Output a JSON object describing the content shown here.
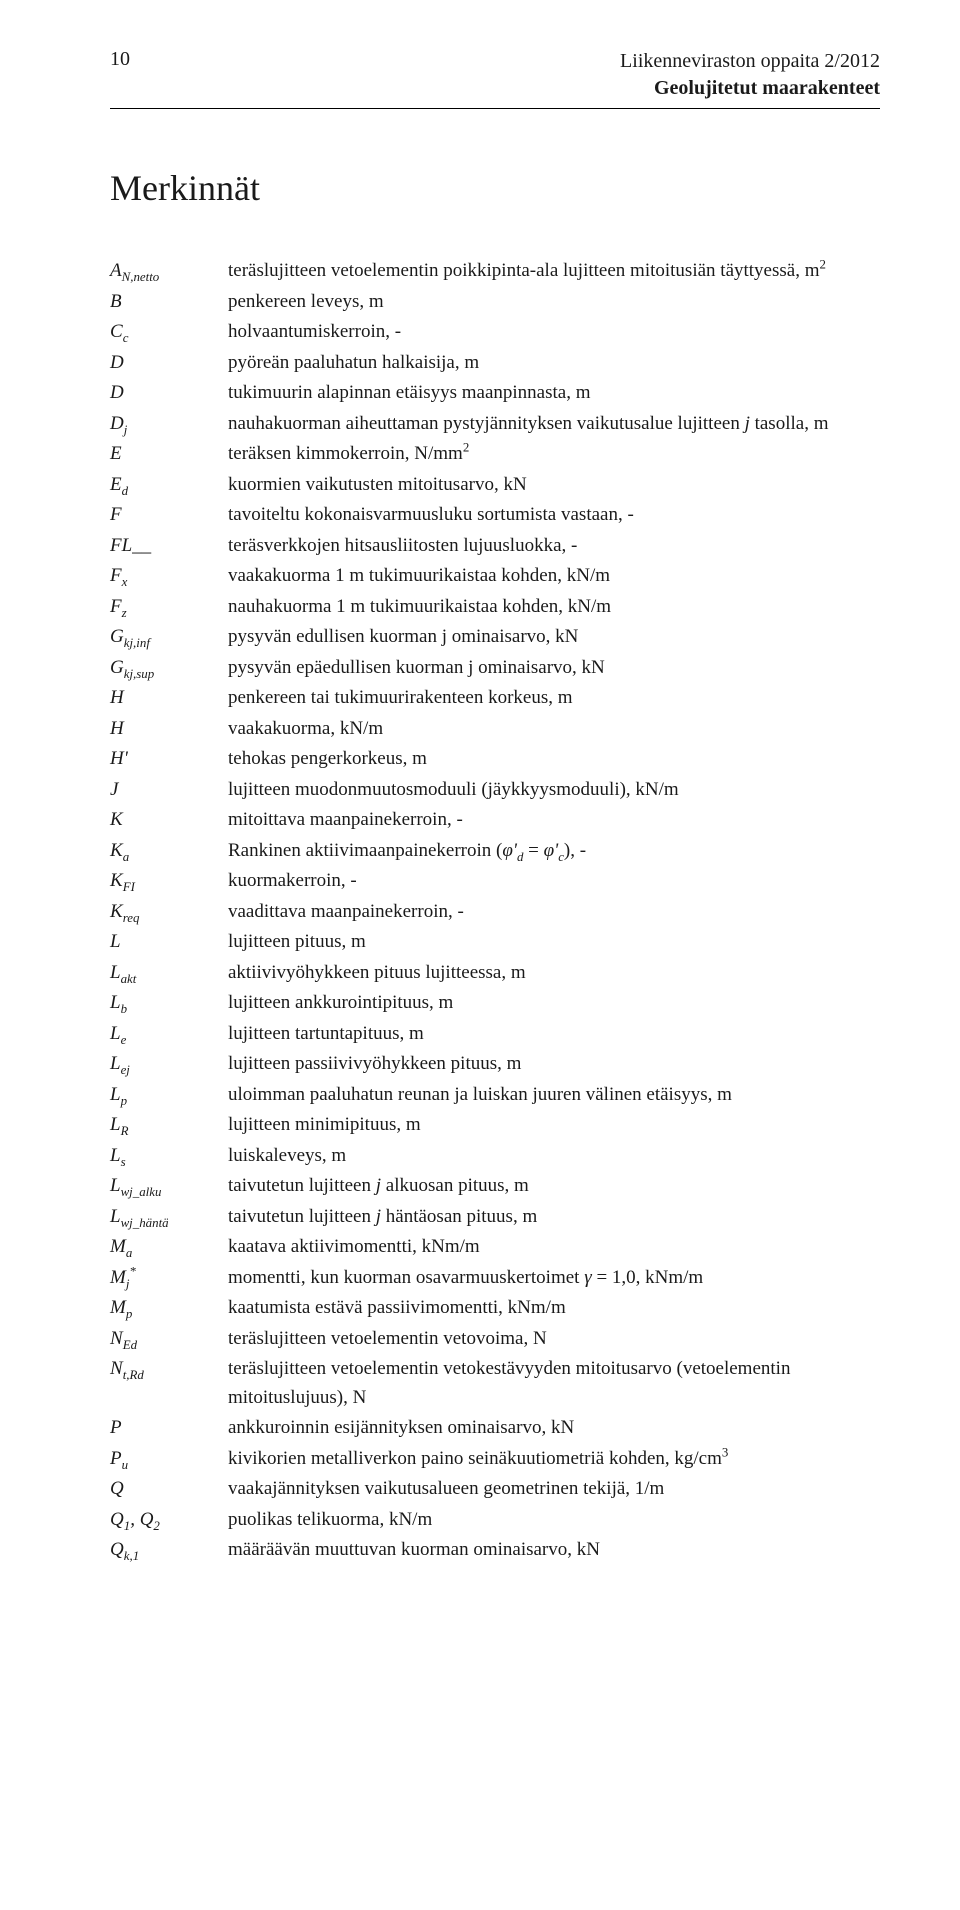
{
  "header": {
    "page_number": "10",
    "line1": "Liikenneviraston oppaita 2/2012",
    "line2": "Geolujitetut maarakenteet"
  },
  "section_title": "Merkinnät",
  "definitions": [
    {
      "symbol_html": "A<span class='sub'>N,netto</span>",
      "desc_html": "teräslujitteen vetoelementin poikkipinta-ala lujitteen mitoitusiän täyttyessä, m<span class='sup'>2</span>"
    },
    {
      "symbol_html": "B",
      "desc_html": "penkereen leveys, m"
    },
    {
      "symbol_html": "C<span class='sub'>c</span>",
      "desc_html": "holvaantumiskerroin, -"
    },
    {
      "symbol_html": "D",
      "desc_html": "pyöreän paaluhatun halkaisija, m"
    },
    {
      "symbol_html": "D",
      "desc_html": "tukimuurin alapinnan etäisyys maanpinnasta, m"
    },
    {
      "symbol_html": "D<span class='sub'>j</span>",
      "desc_html": "nauhakuorman aiheuttaman pystyjännityksen vaikutusalue lujitteen <span class='it'>j</span> tasolla, m"
    },
    {
      "symbol_html": "E",
      "desc_html": "teräksen kimmokerroin, N/mm<span class='sup'>2</span>"
    },
    {
      "symbol_html": "E<span class='sub'>d</span>",
      "desc_html": "kuormien vaikutusten mitoitusarvo, kN"
    },
    {
      "symbol_html": "F",
      "desc_html": "tavoiteltu kokonaisvarmuusluku sortumista vastaan, -"
    },
    {
      "symbol_html": "FL__",
      "desc_html": "teräsverkkojen hitsausliitosten lujuusluokka, -"
    },
    {
      "symbol_html": "F<span class='sub'>x</span>",
      "desc_html": "vaakakuorma 1 m tukimuurikaistaa kohden, kN/m"
    },
    {
      "symbol_html": "F<span class='sub'>z</span>",
      "desc_html": "nauhakuorma 1 m tukimuurikaistaa kohden, kN/m"
    },
    {
      "symbol_html": "G<span class='sub'>kj,inf</span>",
      "desc_html": "pysyvän edullisen kuorman j ominaisarvo, kN"
    },
    {
      "symbol_html": "G<span class='sub'>kj,sup</span>",
      "desc_html": "pysyvän epäedullisen kuorman j ominaisarvo, kN"
    },
    {
      "symbol_html": "H",
      "desc_html": "penkereen tai tukimuurirakenteen korkeus, m"
    },
    {
      "symbol_html": "H",
      "desc_html": "vaakakuorma, kN/m"
    },
    {
      "symbol_html": "H'",
      "desc_html": "tehokas pengerkorkeus, m"
    },
    {
      "symbol_html": "J",
      "desc_html": "lujitteen muodonmuutosmoduuli (jäykkyysmoduuli), kN/m"
    },
    {
      "symbol_html": "K",
      "desc_html": "mitoittava maanpainekerroin, -"
    },
    {
      "symbol_html": "K<span class='sub'>a</span>",
      "desc_html": "Rankinen aktiivimaanpainekerroin (<span class='it'>φ'<span class='sub'>d</span></span> = <span class='it'>φ'<span class='sub'>c</span></span>), -"
    },
    {
      "symbol_html": "K<span class='sub'>FI</span>",
      "desc_html": "kuormakerroin, -"
    },
    {
      "symbol_html": "K<span class='sub'>req</span>",
      "desc_html": "vaadittava maanpainekerroin, -"
    },
    {
      "symbol_html": "L",
      "desc_html": "lujitteen pituus, m"
    },
    {
      "symbol_html": "L<span class='sub'>akt</span>",
      "desc_html": "aktiivivyöhykkeen pituus lujitteessa, m"
    },
    {
      "symbol_html": "L<span class='sub'>b</span>",
      "desc_html": "lujitteen ankkurointipituus, m"
    },
    {
      "symbol_html": "L<span class='sub'>e</span>",
      "desc_html": "lujitteen tartuntapituus, m"
    },
    {
      "symbol_html": "L<span class='sub'>ej</span>",
      "desc_html": "lujitteen passiivivyöhykkeen pituus, m"
    },
    {
      "symbol_html": "L<span class='sub'>p</span>",
      "desc_html": "uloimman paaluhatun reunan ja luiskan juuren välinen etäisyys, m"
    },
    {
      "symbol_html": "L<span class='sub'>R</span>",
      "desc_html": "lujitteen minimipituus, m"
    },
    {
      "symbol_html": "L<span class='sub'>s</span>",
      "desc_html": "luiskaleveys, m"
    },
    {
      "symbol_html": "L<span class='sub'>wj_alku</span>",
      "desc_html": "taivutetun lujitteen <span class='it'>j</span> alkuosan pituus, m"
    },
    {
      "symbol_html": "L<span class='sub'>wj_häntä</span>",
      "desc_html": "taivutetun lujitteen <span class='it'>j</span> häntäosan pituus, m"
    },
    {
      "symbol_html": "M<span class='sub'>a</span>",
      "desc_html": "kaatava aktiivimomentti, kNm/m"
    },
    {
      "symbol_html": "M<span class='sub'>j</span><span class='sup'>*</span>",
      "desc_html": "momentti, kun kuorman osavarmuuskertoimet <span class='it'>γ</span> = 1,0, kNm/m"
    },
    {
      "symbol_html": "M<span class='sub'>p</span>",
      "desc_html": "kaatumista estävä passiivimomentti, kNm/m"
    },
    {
      "symbol_html": "N<span class='sub'>Ed</span>",
      "desc_html": "teräslujitteen vetoelementin vetovoima, N"
    },
    {
      "symbol_html": "N<span class='sub'>t,Rd</span>",
      "desc_html": "teräslujitteen vetoelementin vetokestävyyden mitoitusarvo (vetoelementin mitoituslujuus), N"
    },
    {
      "symbol_html": "P",
      "desc_html": "ankkuroinnin esijännityksen ominaisarvo, kN"
    },
    {
      "symbol_html": "P<span class='sub'>u</span>",
      "desc_html": "kivikorien metalliverkon paino seinäkuutiometriä kohden, kg/cm<span class='sup'>3</span>"
    },
    {
      "symbol_html": "Q",
      "desc_html": "vaakajännityksen vaikutusalueen geometrinen tekijä, 1/m"
    },
    {
      "symbol_html": "Q<span class='sub'>1</span>, Q<span class='sub'>2</span>",
      "desc_html": "puolikas telikuorma, kN/m"
    },
    {
      "symbol_html": "Q<span class='sub'>k,1</span>",
      "desc_html": "määräävän muuttuvan kuorman ominaisarvo, kN"
    }
  ]
}
